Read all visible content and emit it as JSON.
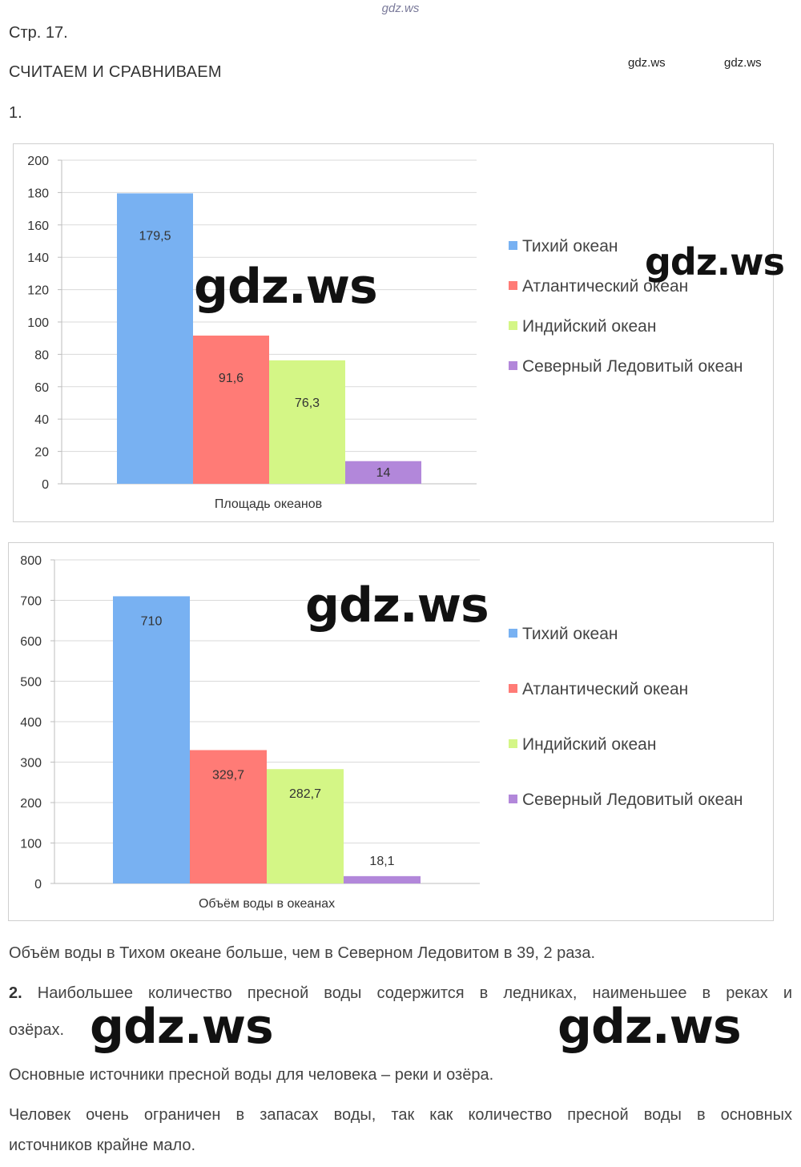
{
  "header": {
    "top_watermark": "gdz.ws",
    "page_number": "Стр. 17.",
    "section_title": "СЧИТАЕМ И СРАВНИВАЕМ",
    "small_watermark_1": "gdz.ws",
    "small_watermark_2": "gdz.ws",
    "task_1_label": "1."
  },
  "watermarks": {
    "chart1_center": "gdz.ws",
    "chart1_right": "gdz.ws",
    "chart2_center": "gdz.ws",
    "text_left": "gdz.ws",
    "text_right": "gdz.ws"
  },
  "chart_data": [
    {
      "type": "bar",
      "categories": [
        "Площадь океанов"
      ],
      "xlabel": "Площадь океанов",
      "ylim": [
        0,
        200
      ],
      "yticks": [
        "0",
        "20",
        "40",
        "60",
        "80",
        "100",
        "120",
        "140",
        "160",
        "180",
        "200"
      ],
      "grid": true,
      "legend_position": "right",
      "series": [
        {
          "name": "Тихий океан",
          "values": [
            179.5
          ],
          "label": "179,5",
          "color": "#78B1F2"
        },
        {
          "name": "Атлантический океан",
          "values": [
            91.6
          ],
          "label": "91,6",
          "color": "#FF7B76"
        },
        {
          "name": "Индийский океан",
          "values": [
            76.3
          ],
          "label": "76,3",
          "color": "#D4F686"
        },
        {
          "name": "Северный Ледовитый океан",
          "values": [
            14
          ],
          "label": "14",
          "color": "#B287DA"
        }
      ]
    },
    {
      "type": "bar",
      "categories": [
        "Объём воды в океанах"
      ],
      "xlabel": "Объём воды в океанах",
      "ylim": [
        0,
        800
      ],
      "yticks": [
        "0",
        "100",
        "200",
        "300",
        "400",
        "500",
        "600",
        "700",
        "800"
      ],
      "grid": true,
      "legend_position": "right",
      "series": [
        {
          "name": "Тихий океан",
          "values": [
            710
          ],
          "label": "710",
          "color": "#78B1F2"
        },
        {
          "name": "Атлантический океан",
          "values": [
            329.7
          ],
          "label": "329,7",
          "color": "#FF7B76"
        },
        {
          "name": "Индийский океан",
          "values": [
            282.7
          ],
          "label": "282,7",
          "color": "#D4F686"
        },
        {
          "name": "Северный Ледовитый океан",
          "values": [
            18.1
          ],
          "label": "18,1",
          "color": "#B287DA"
        }
      ]
    }
  ],
  "text": {
    "p1": "Объём воды в Тихом океане больше, чем в Северном Ледовитом в 39, 2 раза.",
    "p2_label": "2.",
    "p2_line1": "Наибольшее количество пресной воды содержится в ледниках, наименьшее в реках и",
    "p2_line2": "озёрах.",
    "p3": "Основные источники пресной воды для человека – реки и озёра.",
    "p4_line1": "Человек очень ограничен в запасах воды, так как количество пресной воды в основных",
    "p4_line2": "источников крайне мало."
  }
}
